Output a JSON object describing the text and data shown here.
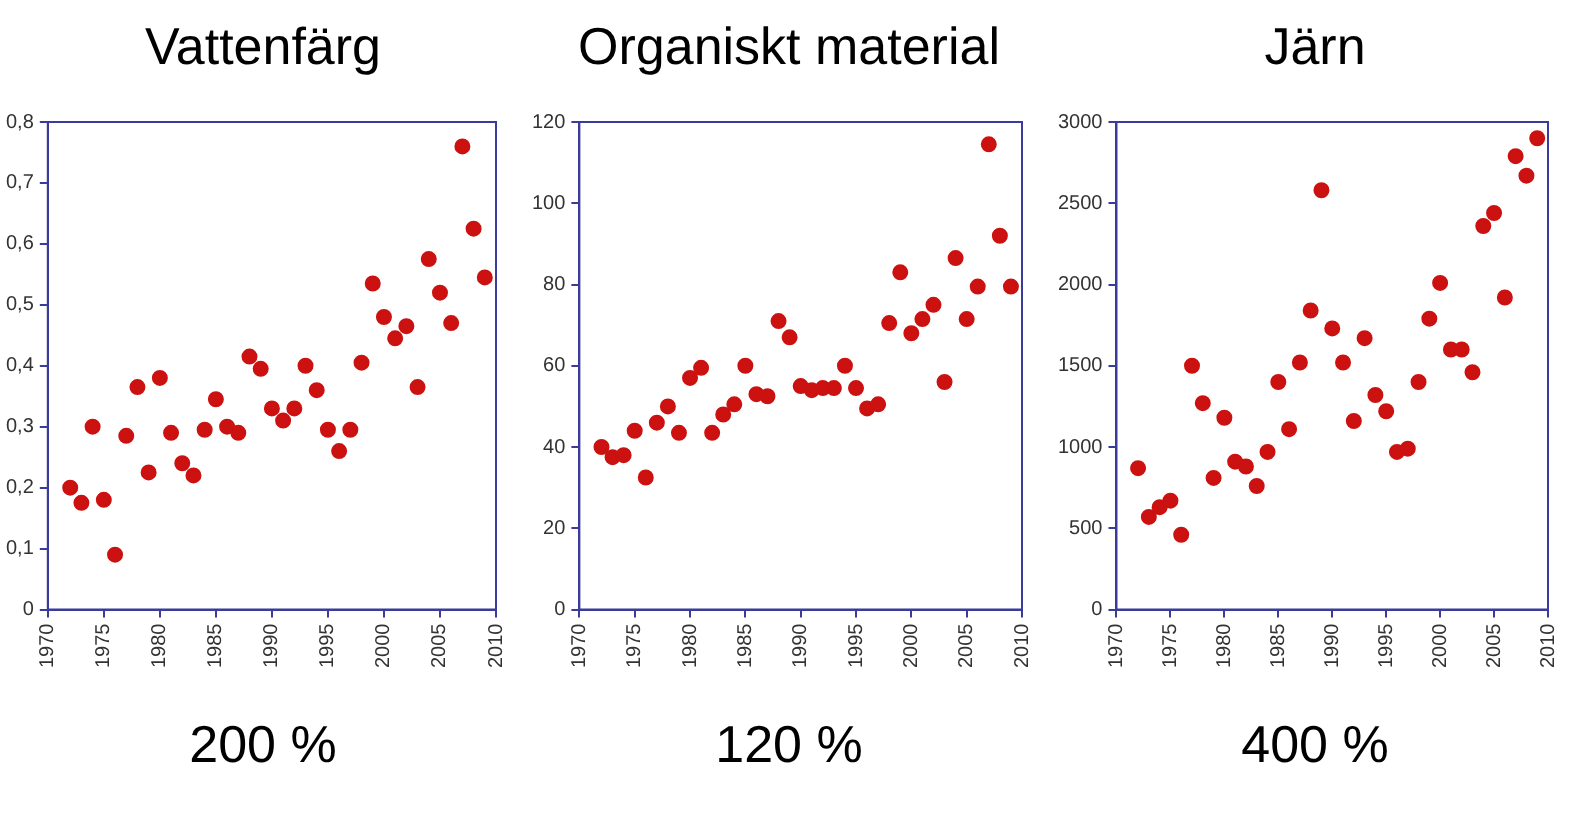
{
  "chart_data": [
    {
      "type": "scatter",
      "title": "Vattenfärg",
      "annotations": [
        "200 %"
      ],
      "marker": "circle",
      "color": "#cc1111",
      "x": [
        1972,
        1973,
        1974,
        1975,
        1976,
        1977,
        1978,
        1979,
        1980,
        1981,
        1982,
        1983,
        1984,
        1985,
        1986,
        1987,
        1988,
        1989,
        1990,
        1991,
        1992,
        1993,
        1994,
        1995,
        1996,
        1997,
        1998,
        1999,
        2000,
        2001,
        2002,
        2003,
        2004,
        2005,
        2006,
        2007,
        2008,
        2009
      ],
      "values": [
        0.2,
        0.175,
        0.3,
        0.18,
        0.09,
        0.285,
        0.365,
        0.225,
        0.38,
        0.29,
        0.24,
        0.22,
        0.295,
        0.345,
        0.3,
        0.29,
        0.415,
        0.395,
        0.33,
        0.31,
        0.33,
        0.4,
        0.36,
        0.295,
        0.26,
        0.295,
        0.405,
        0.535,
        0.48,
        0.445,
        0.465,
        0.365,
        0.575,
        0.52,
        0.47,
        0.76,
        0.625,
        0.545
      ],
      "xlim": [
        1970,
        2010
      ],
      "xticks": [
        1970,
        1975,
        1980,
        1985,
        1990,
        1995,
        2000,
        2005,
        2010
      ],
      "ylim": [
        0,
        0.8
      ],
      "yticks": [
        0,
        {
          "value": 0.1,
          "label": "0,1"
        },
        {
          "value": 0.2,
          "label": "0,2"
        },
        {
          "value": 0.3,
          "label": "0,3"
        },
        {
          "value": 0.4,
          "label": "0,4"
        },
        {
          "value": 0.5,
          "label": "0,5"
        },
        {
          "value": 0.6,
          "label": "0,6"
        },
        {
          "value": 0.7,
          "label": "0,7"
        },
        {
          "value": 0.8,
          "label": "0,8"
        }
      ]
    },
    {
      "type": "scatter",
      "title": "Organiskt material",
      "annotations": [
        "120 %"
      ],
      "marker": "circle",
      "color": "#cc1111",
      "x": [
        1972,
        1973,
        1974,
        1975,
        1976,
        1977,
        1978,
        1979,
        1980,
        1981,
        1982,
        1983,
        1984,
        1985,
        1986,
        1987,
        1988,
        1989,
        1990,
        1991,
        1992,
        1993,
        1994,
        1995,
        1996,
        1997,
        1998,
        1999,
        2000,
        2001,
        2002,
        2003,
        2004,
        2005,
        2006,
        2007,
        2008,
        2009
      ],
      "values": [
        40,
        37.5,
        38,
        44,
        32.5,
        46,
        50,
        43.5,
        57,
        59.5,
        43.5,
        48,
        50.5,
        60,
        53,
        52.5,
        71,
        67,
        55,
        54,
        54.5,
        54.5,
        60,
        54.5,
        49.5,
        50.5,
        70.5,
        83,
        68,
        71.5,
        75,
        56,
        86.5,
        71.5,
        79.5,
        114.5,
        92,
        79.5
      ],
      "xlim": [
        1970,
        2010
      ],
      "xticks": [
        1970,
        1975,
        1980,
        1985,
        1990,
        1995,
        2000,
        2005,
        2010
      ],
      "ylim": [
        0,
        120
      ],
      "yticks": [
        0,
        20,
        40,
        60,
        80,
        100,
        120
      ]
    },
    {
      "type": "scatter",
      "title": "Järn",
      "annotations": [
        "400 %"
      ],
      "marker": "circle",
      "color": "#cc1111",
      "x": [
        1972,
        1973,
        1974,
        1975,
        1976,
        1977,
        1978,
        1979,
        1980,
        1981,
        1982,
        1983,
        1984,
        1985,
        1986,
        1987,
        1988,
        1989,
        1990,
        1991,
        1992,
        1993,
        1994,
        1995,
        1996,
        1997,
        1998,
        1999,
        2000,
        2001,
        2002,
        2003,
        2004,
        2005,
        2006,
        2007,
        2008,
        2009
      ],
      "values": [
        870,
        570,
        630,
        670,
        460,
        1500,
        1270,
        810,
        1180,
        910,
        880,
        760,
        970,
        1400,
        1110,
        1520,
        1840,
        2580,
        1730,
        1520,
        1160,
        1670,
        1320,
        1220,
        970,
        990,
        1400,
        1790,
        2010,
        1600,
        1600,
        1460,
        2360,
        2440,
        1920,
        2790,
        2670,
        2900
      ],
      "xlim": [
        1970,
        2010
      ],
      "xticks": [
        1970,
        1975,
        1980,
        1985,
        1990,
        1995,
        2000,
        2005,
        2010
      ],
      "ylim": [
        0,
        3000
      ],
      "yticks": [
        0,
        500,
        1000,
        1500,
        2000,
        2500,
        3000
      ]
    }
  ]
}
